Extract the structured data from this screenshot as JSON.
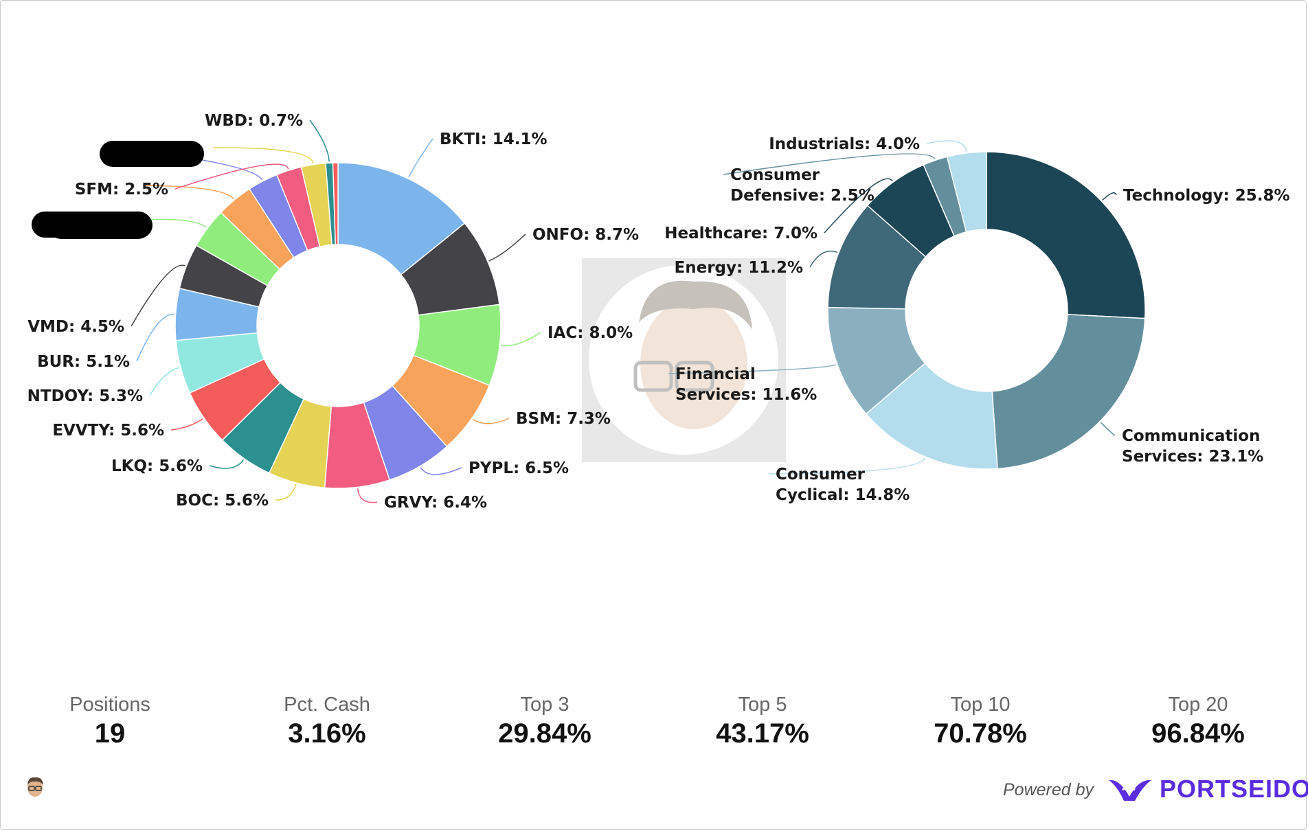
{
  "chart_data": [
    {
      "type": "pie",
      "variant": "donut",
      "slices": [
        {
          "label": "BKTI: 14.1%",
          "value": 14.1,
          "color": "#7cb5ec"
        },
        {
          "label": "ONFO: 8.7%",
          "value": 8.7,
          "color": "#434348"
        },
        {
          "label": "IAC: 8.0%",
          "value": 8.0,
          "color": "#90ed7d"
        },
        {
          "label": "BSM: 7.3%",
          "value": 7.3,
          "color": "#f7a35c"
        },
        {
          "label": "PYPL: 6.5%",
          "value": 6.5,
          "color": "#8085e9"
        },
        {
          "label": "GRVY: 6.4%",
          "value": 6.4,
          "color": "#f15c80"
        },
        {
          "label": "BOC: 5.6%",
          "value": 5.6,
          "color": "#e4d354"
        },
        {
          "label": "LKQ: 5.6%",
          "value": 5.6,
          "color": "#2b908f"
        },
        {
          "label": "EVVTY: 5.6%",
          "value": 5.6,
          "color": "#f45b5b"
        },
        {
          "label": "NTDOY: 5.3%",
          "value": 5.3,
          "color": "#91e8e1"
        },
        {
          "label": "BUR: 5.1%",
          "value": 5.1,
          "color": "#7cb5ec"
        },
        {
          "label": "VMD: 4.5%",
          "value": 4.5,
          "color": "#434348"
        },
        {
          "label": "",
          "value": 4.0,
          "color": "#90ed7d",
          "redacted": true
        },
        {
          "label": "",
          "value": 3.6,
          "color": "#f7a35c",
          "redacted": true
        },
        {
          "label": "",
          "value": 3.0,
          "color": "#8085e9",
          "redacted": true
        },
        {
          "label": "SFM: 2.5%",
          "value": 2.5,
          "color": "#f15c80"
        },
        {
          "label": "",
          "value": 2.4,
          "color": "#e4d354",
          "redacted": true
        },
        {
          "label": "WBD: 0.7%",
          "value": 0.7,
          "color": "#2b908f"
        },
        {
          "label": "",
          "value": 0.5,
          "color": "#f45b5b"
        }
      ]
    },
    {
      "type": "pie",
      "variant": "donut",
      "slices": [
        {
          "label": "Technology: 25.8%",
          "value": 25.8,
          "color": "#1c4655"
        },
        {
          "label": "Communication Services: 23.1%",
          "value": 23.1,
          "color": "#638f9d"
        },
        {
          "label": "Consumer Cyclical: 14.8%",
          "value": 14.8,
          "color": "#b3ddec"
        },
        {
          "label": "Financial Services: 11.6%",
          "value": 11.6,
          "color": "#8ab0c0"
        },
        {
          "label": "Energy: 11.2%",
          "value": 11.2,
          "color": "#3f6878"
        },
        {
          "label": "Healthcare: 7.0%",
          "value": 7.0,
          "color": "#1c4655"
        },
        {
          "label": "Consumer Defensive: 2.5%",
          "value": 2.5,
          "color": "#638f9d"
        },
        {
          "label": "Industrials: 4.0%",
          "value": 4.0,
          "color": "#b3ddec"
        }
      ]
    }
  ],
  "stats": [
    {
      "label": "Positions",
      "value": "19"
    },
    {
      "label": "Pct. Cash",
      "value": "3.16%"
    },
    {
      "label": "Top 3",
      "value": "29.84%"
    },
    {
      "label": "Top 5",
      "value": "43.17%"
    },
    {
      "label": "Top 10",
      "value": "70.78%"
    },
    {
      "label": "Top 20",
      "value": "96.84%"
    }
  ],
  "footer": {
    "powered_by": "Powered by",
    "brand": "PORTSEIDO"
  },
  "colors": {
    "brand": "#5b2de0"
  }
}
